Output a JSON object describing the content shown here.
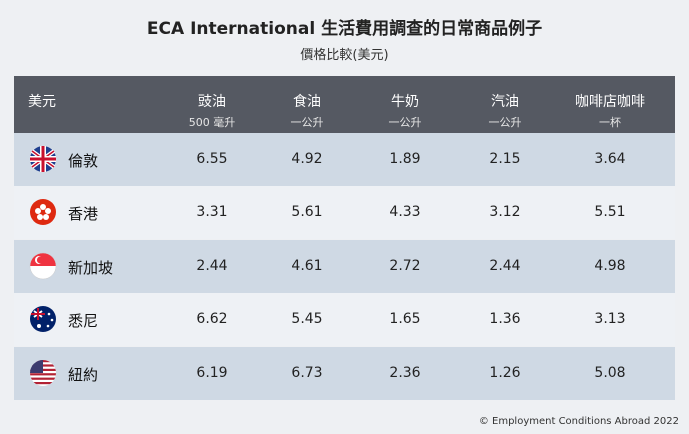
{
  "header": {
    "title": "ECA International 生活費用調查的日常商品例子",
    "subtitle": "價格比較(美元)"
  },
  "table": {
    "corner": "美元",
    "columns": [
      {
        "name": "豉油",
        "unit": "500 毫升"
      },
      {
        "name": "食油",
        "unit": "一公升"
      },
      {
        "name": "牛奶",
        "unit": "一公升"
      },
      {
        "name": "汽油",
        "unit": "一公升"
      },
      {
        "name": "咖啡店咖啡",
        "unit": "一杯"
      }
    ],
    "rows": [
      {
        "city": "倫敦",
        "values": [
          6.55,
          4.92,
          1.89,
          2.15,
          3.64
        ]
      },
      {
        "city": "香港",
        "values": [
          3.31,
          5.61,
          4.33,
          3.12,
          5.51
        ]
      },
      {
        "city": "新加坡",
        "values": [
          2.44,
          4.61,
          2.72,
          2.44,
          4.98
        ]
      },
      {
        "city": "悉尼",
        "values": [
          6.62,
          5.45,
          1.65,
          1.36,
          3.13
        ]
      },
      {
        "city": "紐約",
        "values": [
          6.19,
          6.73,
          2.36,
          1.26,
          5.08
        ]
      }
    ]
  },
  "footer": "© Employment Conditions Abroad 2022"
}
